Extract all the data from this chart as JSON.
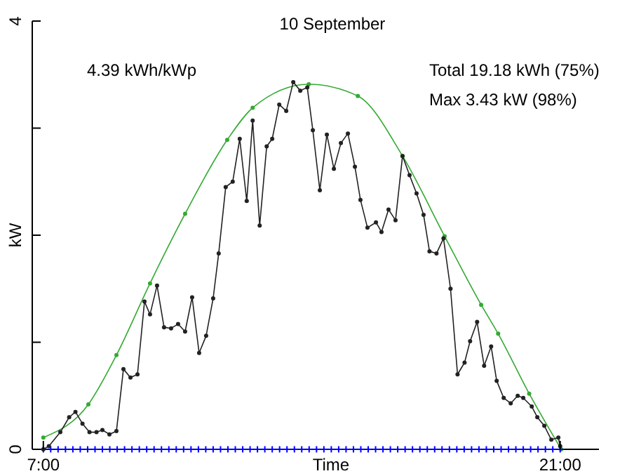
{
  "chart_data": {
    "type": "line",
    "title": "10 September",
    "xlabel": "Time",
    "ylabel": "kW",
    "annotations": [
      "4.39 kWh/kWp",
      "Total 19.18 kWh (75%)",
      "Max 3.43 kW (98%)"
    ],
    "xlim": [
      6.7,
      22.05
    ],
    "xticks": [
      {
        "value": 7,
        "label": "7:00"
      },
      {
        "value": 21,
        "label": "21:00"
      }
    ],
    "ylim": [
      0,
      4
    ],
    "yticks": [
      0,
      {
        "value": 1,
        "label": null
      },
      {
        "value": 2,
        "label": null
      },
      {
        "value": 3,
        "label": null
      },
      4
    ],
    "grid": false,
    "line_style": "solid",
    "series": [
      {
        "color": "#33aa33",
        "marker": "circle",
        "x": [
          7.0,
          8.22,
          8.98,
          9.89,
          10.84,
          11.98,
          12.67,
          14.19,
          15.52,
          16.73,
          17.87,
          18.86,
          19.32,
          20.16,
          21.03
        ],
        "values": [
          0.11,
          0.42,
          0.88,
          1.55,
          2.2,
          2.89,
          3.19,
          3.41,
          3.3,
          2.74,
          1.99,
          1.35,
          1.08,
          0.52,
          0.0
        ]
      },
      {
        "color": "#0000ff",
        "marker": "cross",
        "x": [
          7.0,
          7.2,
          7.4,
          7.6,
          7.8,
          8.0,
          8.2,
          8.4,
          8.6,
          8.8,
          9.0,
          9.2,
          9.4,
          9.6,
          9.8,
          10.0,
          10.2,
          10.4,
          10.6,
          10.8,
          11.0,
          11.2,
          11.4,
          11.6,
          11.8,
          12.0,
          12.2,
          12.4,
          12.6,
          12.8,
          13.0,
          13.2,
          13.4,
          13.6,
          13.8,
          14.0,
          14.2,
          14.4,
          14.6,
          14.8,
          15.0,
          15.2,
          15.4,
          15.6,
          15.8,
          16.0,
          16.2,
          16.4,
          16.6,
          16.8,
          17.0,
          17.2,
          17.4,
          17.6,
          17.8,
          18.0,
          18.2,
          18.4,
          18.6,
          18.8,
          19.0,
          19.2,
          19.4,
          19.6,
          19.8,
          20.0,
          20.2,
          20.4,
          20.6,
          20.8,
          21.0
        ],
        "values": [
          0,
          0,
          0,
          0,
          0,
          0,
          0,
          0,
          0,
          0,
          0,
          0,
          0,
          0,
          0,
          0,
          0,
          0,
          0,
          0,
          0,
          0,
          0,
          0,
          0,
          0,
          0,
          0,
          0,
          0,
          0,
          0,
          0,
          0,
          0,
          0,
          0,
          0,
          0,
          0,
          0,
          0,
          0,
          0,
          0,
          0,
          0,
          0,
          0,
          0,
          0,
          0,
          0,
          0,
          0,
          0,
          0,
          0,
          0,
          0,
          0,
          0,
          0,
          0,
          0,
          0,
          0,
          0,
          0,
          0,
          0
        ]
      },
      {
        "color": "#222222",
        "marker": "circle",
        "x": [
          7.0,
          7.15,
          7.46,
          7.7,
          7.87,
          8.06,
          8.25,
          8.44,
          8.6,
          8.79,
          8.98,
          9.17,
          9.36,
          9.55,
          9.74,
          9.89,
          10.08,
          10.27,
          10.46,
          10.65,
          10.84,
          11.03,
          11.22,
          11.41,
          11.6,
          11.75,
          11.94,
          12.13,
          12.32,
          12.51,
          12.67,
          12.86,
          13.05,
          13.2,
          13.39,
          13.58,
          13.77,
          13.96,
          14.15,
          14.3,
          14.49,
          14.68,
          14.87,
          15.06,
          15.25,
          15.44,
          15.59,
          15.78,
          16.01,
          16.16,
          16.35,
          16.54,
          16.73,
          16.92,
          17.11,
          17.3,
          17.46,
          17.65,
          17.84,
          18.03,
          18.22,
          18.41,
          18.56,
          18.75,
          18.94,
          19.13,
          19.28,
          19.47,
          19.66,
          19.85,
          20.0,
          20.23,
          20.38,
          20.57,
          20.76,
          20.95,
          21.0
        ],
        "values": [
          0,
          0.03,
          0.16,
          0.3,
          0.35,
          0.24,
          0.16,
          0.16,
          0.18,
          0.14,
          0.17,
          0.75,
          0.67,
          0.7,
          1.38,
          1.26,
          1.53,
          1.14,
          1.13,
          1.17,
          1.1,
          1.42,
          0.9,
          1.06,
          1.41,
          1.83,
          2.45,
          2.5,
          2.9,
          2.32,
          3.07,
          2.09,
          2.83,
          2.9,
          3.22,
          3.16,
          3.43,
          3.35,
          3.38,
          2.98,
          2.42,
          2.94,
          2.62,
          2.86,
          2.95,
          2.64,
          2.33,
          2.07,
          2.12,
          2.03,
          2.24,
          2.14,
          2.74,
          2.56,
          2.39,
          2.19,
          1.85,
          1.83,
          1.97,
          1.5,
          0.7,
          0.81,
          1.01,
          1.19,
          0.78,
          0.96,
          0.64,
          0.48,
          0.43,
          0.5,
          0.48,
          0.4,
          0.3,
          0.22,
          0.09,
          0.11,
          0.03
        ]
      }
    ]
  }
}
